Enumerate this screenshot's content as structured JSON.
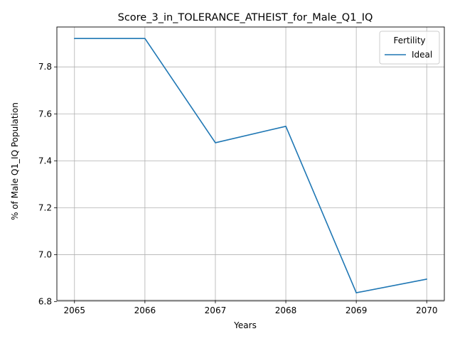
{
  "chart_data": {
    "type": "line",
    "title": "Score_3_in_TOLERANCE_ATHEIST_for_Male_Q1_IQ",
    "xlabel": "Years",
    "ylabel": "% of Male Q1_IQ Population",
    "x": [
      2065,
      2066,
      2067,
      2068,
      2069,
      2070
    ],
    "xlim": [
      2064.75,
      2070.25
    ],
    "ylim": [
      6.805,
      7.97
    ],
    "x_ticks": [
      "2065",
      "2066",
      "2067",
      "2068",
      "2069",
      "2070"
    ],
    "y_ticks": [
      "6.8",
      "7.0",
      "7.2",
      "7.4",
      "7.6",
      "7.8"
    ],
    "y_tick_values": [
      6.8,
      7.0,
      7.2,
      7.4,
      7.6,
      7.8
    ],
    "grid": true,
    "legend": {
      "title": "Fertility",
      "position": "top-right"
    },
    "series": [
      {
        "name": "Ideal",
        "color": "#1f77b4",
        "values": [
          7.921,
          7.921,
          7.477,
          7.547,
          6.838,
          6.896
        ]
      }
    ]
  }
}
